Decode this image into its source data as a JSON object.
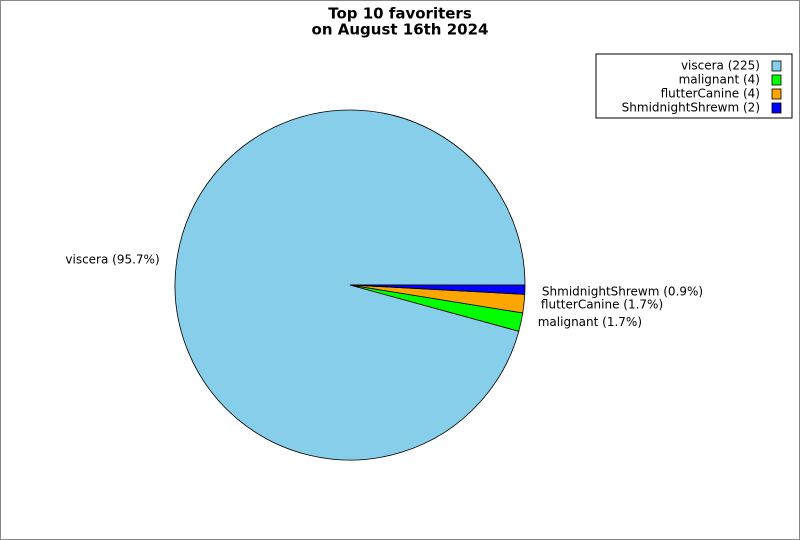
{
  "chart_data": {
    "type": "pie",
    "title": [
      "Top 10 favoriters",
      "on August 16th 2024"
    ],
    "categories": [
      "viscera (225)",
      "malignant (4)",
      "flutterCanine (4)",
      "ShmidnightShrewm (2)"
    ],
    "values": [
      225,
      4,
      4,
      2
    ],
    "value_labels": [
      "viscera (95.7%)",
      "malignant (1.7%)",
      "flutterCanine (1.7%)",
      "ShmidnightShrewm (0.9%)"
    ],
    "colors": [
      "#87ceeb",
      "#00ff00",
      "#ffa500",
      "#0000ff"
    ],
    "legend": "top-right"
  }
}
